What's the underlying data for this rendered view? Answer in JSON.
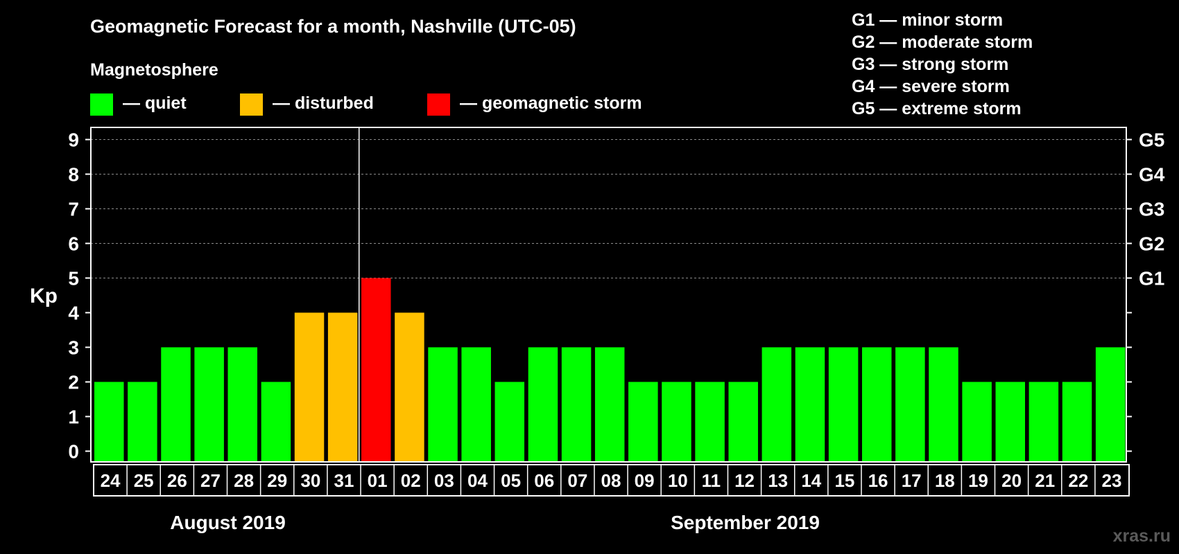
{
  "chart_data": {
    "type": "bar",
    "title": "Geomagnetic Forecast for a month, Nashville (UTC-05)",
    "ylabel": "Kp",
    "ylim": [
      0,
      9
    ],
    "yticks": [
      "0",
      "1",
      "2",
      "3",
      "4",
      "5",
      "6",
      "7",
      "8",
      "9"
    ],
    "right_axis": [
      {
        "label": "G1",
        "kp": 5
      },
      {
        "label": "G2",
        "kp": 6
      },
      {
        "label": "G3",
        "kp": 7
      },
      {
        "label": "G4",
        "kp": 8
      },
      {
        "label": "G5",
        "kp": 9
      }
    ],
    "categories": [
      "24",
      "25",
      "26",
      "27",
      "28",
      "29",
      "30",
      "31",
      "01",
      "02",
      "03",
      "04",
      "05",
      "06",
      "07",
      "08",
      "09",
      "10",
      "11",
      "12",
      "13",
      "14",
      "15",
      "16",
      "17",
      "18",
      "19",
      "20",
      "21",
      "22",
      "23"
    ],
    "values": [
      2,
      2,
      3,
      3,
      3,
      2,
      4,
      4,
      5,
      4,
      3,
      3,
      2,
      3,
      3,
      3,
      2,
      2,
      2,
      2,
      3,
      3,
      3,
      3,
      3,
      3,
      2,
      2,
      2,
      2,
      3
    ],
    "states": [
      "quiet",
      "quiet",
      "quiet",
      "quiet",
      "quiet",
      "quiet",
      "disturbed",
      "disturbed",
      "storm",
      "disturbed",
      "quiet",
      "quiet",
      "quiet",
      "quiet",
      "quiet",
      "quiet",
      "quiet",
      "quiet",
      "quiet",
      "quiet",
      "quiet",
      "quiet",
      "quiet",
      "quiet",
      "quiet",
      "quiet",
      "quiet",
      "quiet",
      "quiet",
      "quiet",
      "quiet"
    ],
    "months": [
      {
        "label": "August 2019",
        "first_index": 0,
        "last_index": 7
      },
      {
        "label": "September 2019",
        "first_index": 8,
        "last_index": 30
      }
    ],
    "month_divider_before_index": 8,
    "legend": {
      "title": "Magnetosphere",
      "items": [
        {
          "key": "quiet",
          "label": "— quiet",
          "color": "#00ff00"
        },
        {
          "key": "disturbed",
          "label": "— disturbed",
          "color": "#ffc000"
        },
        {
          "key": "storm",
          "label": "— geomagnetic storm",
          "color": "#ff0000"
        }
      ]
    },
    "storm_scale": [
      "G1 — minor storm",
      "G2 — moderate storm",
      "G3 — strong storm",
      "G4 — severe storm",
      "G5 — extreme storm"
    ],
    "watermark": "xras.ru"
  }
}
